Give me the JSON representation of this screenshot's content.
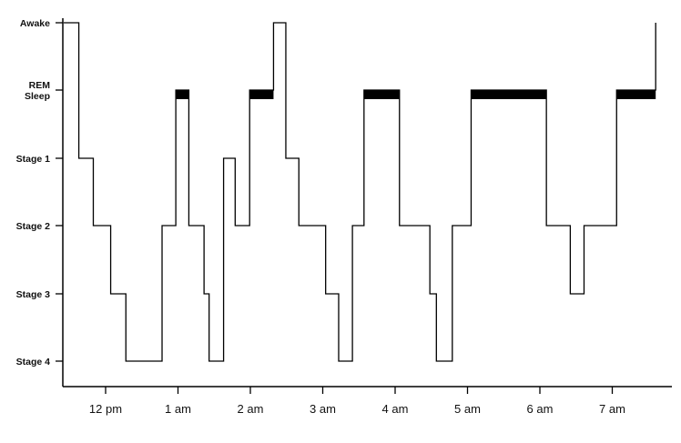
{
  "chart_data": {
    "type": "line",
    "title": "",
    "xlabel": "",
    "ylabel": "",
    "y_levels": [
      "Awake",
      "REM Sleep",
      "Stage 1",
      "Stage 2",
      "Stage 3",
      "Stage 4"
    ],
    "y_level_lines": [
      [
        "Awake"
      ],
      [
        "REM",
        "Sleep"
      ],
      [
        "Stage 1"
      ],
      [
        "Stage 2"
      ],
      [
        "Stage 3"
      ],
      [
        "Stage 4"
      ]
    ],
    "x_ticks": [
      {
        "label": "12 pm",
        "hour": 0
      },
      {
        "label": "1 am",
        "hour": 1
      },
      {
        "label": "2 am",
        "hour": 2
      },
      {
        "label": "3 am",
        "hour": 3
      },
      {
        "label": "4 am",
        "hour": 4
      },
      {
        "label": "5 am",
        "hour": 5
      },
      {
        "label": "6 am",
        "hour": 6
      },
      {
        "label": "7 am",
        "hour": 7
      }
    ],
    "xlim": [
      -0.6,
      7.6
    ],
    "hypnogram": [
      {
        "t": -0.58,
        "level": "Awake"
      },
      {
        "t": -0.37,
        "level": "Stage 1"
      },
      {
        "t": -0.17,
        "level": "Stage 2"
      },
      {
        "t": 0.07,
        "level": "Stage 3"
      },
      {
        "t": 0.28,
        "level": "Stage 4"
      },
      {
        "t": 0.78,
        "level": "Stage 2"
      },
      {
        "t": 0.97,
        "level": "REM Sleep"
      },
      {
        "t": 1.15,
        "level": "Stage 2"
      },
      {
        "t": 1.36,
        "level": "Stage 3"
      },
      {
        "t": 1.43,
        "level": "Stage 4"
      },
      {
        "t": 1.63,
        "level": "Stage 1"
      },
      {
        "t": 1.79,
        "level": "Stage 2"
      },
      {
        "t": 1.99,
        "level": "REM Sleep"
      },
      {
        "t": 2.32,
        "level": "Awake"
      },
      {
        "t": 2.49,
        "level": "Stage 1"
      },
      {
        "t": 2.67,
        "level": "Stage 2"
      },
      {
        "t": 3.04,
        "level": "Stage 3"
      },
      {
        "t": 3.22,
        "level": "Stage 4"
      },
      {
        "t": 3.41,
        "level": "Stage 2"
      },
      {
        "t": 3.57,
        "level": "REM Sleep"
      },
      {
        "t": 4.06,
        "level": "Stage 2"
      },
      {
        "t": 4.48,
        "level": "Stage 3"
      },
      {
        "t": 4.57,
        "level": "Stage 4"
      },
      {
        "t": 4.79,
        "level": "Stage 2"
      },
      {
        "t": 5.05,
        "level": "REM Sleep"
      },
      {
        "t": 6.09,
        "level": "Stage 2"
      },
      {
        "t": 6.42,
        "level": "Stage 3"
      },
      {
        "t": 6.61,
        "level": "Stage 2"
      },
      {
        "t": 7.06,
        "level": "REM Sleep"
      },
      {
        "t": 7.6,
        "level": "Awake"
      },
      {
        "t": 7.6,
        "level": "Awake"
      }
    ],
    "rem_periods": [
      [
        0.97,
        1.15
      ],
      [
        1.99,
        2.32
      ],
      [
        3.57,
        4.06
      ],
      [
        5.05,
        6.09
      ],
      [
        7.06,
        7.6
      ]
    ],
    "grid": false,
    "legend": "none",
    "line_color": "#000000"
  }
}
